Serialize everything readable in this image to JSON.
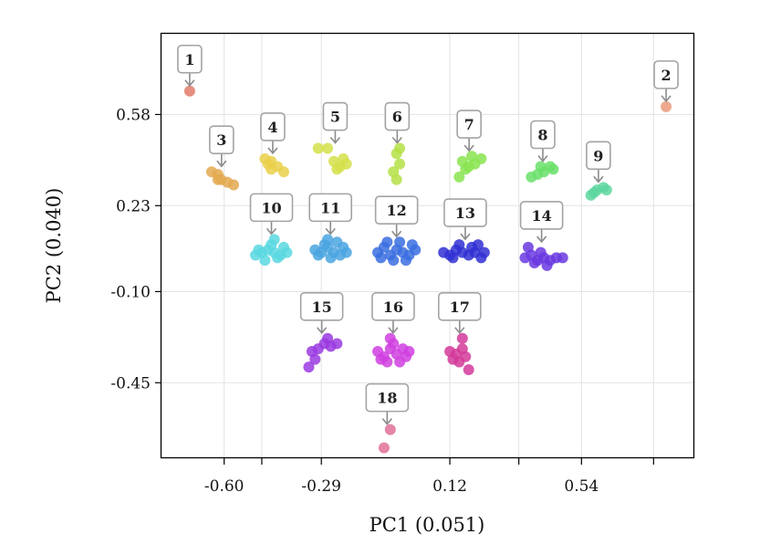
{
  "chart_data": {
    "type": "scatter",
    "title": "",
    "xlabel": "PC1 (0.051)",
    "ylabel": "PC2 (0.040)",
    "xlim": [
      -0.8,
      0.9
    ],
    "ylim": [
      -0.74,
      0.89
    ],
    "xticks": [
      -0.6,
      -0.29,
      0.12,
      0.54
    ],
    "xtick_labels": [
      "-0.60",
      "-0.29",
      "0.12",
      "0.54"
    ],
    "xticks_unlabeled": [
      -0.48,
      0.34,
      0.77
    ],
    "yticks": [
      0.58,
      0.23,
      -0.1,
      -0.45
    ],
    "ytick_labels": [
      "0.58",
      "0.23",
      "-0.10",
      "-0.45"
    ],
    "grid": true,
    "clusters": [
      {
        "label": "1",
        "color": "#e07b6a",
        "points": [
          [
            -0.71,
            0.67
          ]
        ]
      },
      {
        "label": "2",
        "color": "#ea9a7a",
        "points": [
          [
            0.81,
            0.61
          ]
        ]
      },
      {
        "label": "3",
        "color": "#e3a950",
        "points": [
          [
            -0.64,
            0.36
          ],
          [
            -0.62,
            0.35
          ],
          [
            -0.61,
            0.33
          ],
          [
            -0.59,
            0.32
          ],
          [
            -0.57,
            0.31
          ],
          [
            -0.62,
            0.33
          ]
        ]
      },
      {
        "label": "4",
        "color": "#ead04a",
        "points": [
          [
            -0.47,
            0.41
          ],
          [
            -0.45,
            0.4
          ],
          [
            -0.43,
            0.38
          ],
          [
            -0.45,
            0.37
          ],
          [
            -0.41,
            0.36
          ],
          [
            -0.46,
            0.39
          ]
        ]
      },
      {
        "label": "5",
        "color": "#d5e04a",
        "points": [
          [
            -0.3,
            0.45
          ],
          [
            -0.27,
            0.45
          ],
          [
            -0.25,
            0.4
          ],
          [
            -0.23,
            0.38
          ],
          [
            -0.24,
            0.37
          ],
          [
            -0.22,
            0.41
          ],
          [
            -0.21,
            0.39
          ]
        ]
      },
      {
        "label": "6",
        "color": "#b5e045",
        "points": [
          [
            -0.05,
            0.43
          ],
          [
            -0.04,
            0.39
          ],
          [
            -0.06,
            0.36
          ],
          [
            -0.05,
            0.33
          ],
          [
            -0.04,
            0.45
          ]
        ]
      },
      {
        "label": "7",
        "color": "#88e450",
        "points": [
          [
            0.16,
            0.4
          ],
          [
            0.17,
            0.37
          ],
          [
            0.19,
            0.42
          ],
          [
            0.2,
            0.39
          ],
          [
            0.22,
            0.41
          ],
          [
            0.15,
            0.34
          ],
          [
            0.18,
            0.38
          ]
        ]
      },
      {
        "label": "8",
        "color": "#6ae06a",
        "points": [
          [
            0.38,
            0.34
          ],
          [
            0.4,
            0.35
          ],
          [
            0.42,
            0.36
          ],
          [
            0.44,
            0.38
          ],
          [
            0.45,
            0.37
          ],
          [
            0.41,
            0.38
          ]
        ]
      },
      {
        "label": "9",
        "color": "#5ed6a0",
        "points": [
          [
            0.57,
            0.27
          ],
          [
            0.59,
            0.29
          ],
          [
            0.61,
            0.3
          ],
          [
            0.62,
            0.29
          ],
          [
            0.58,
            0.28
          ]
        ]
      },
      {
        "label": "10",
        "color": "#5ad8e0",
        "points": [
          [
            -0.5,
            0.04
          ],
          [
            -0.48,
            0.05
          ],
          [
            -0.46,
            0.06
          ],
          [
            -0.44,
            0.05
          ],
          [
            -0.42,
            0.04
          ],
          [
            -0.4,
            0.05
          ],
          [
            -0.47,
            0.02
          ],
          [
            -0.43,
            0.03
          ],
          [
            -0.45,
            0.08
          ],
          [
            -0.41,
            0.07
          ],
          [
            -0.49,
            0.06
          ],
          [
            -0.44,
            0.1
          ]
        ]
      },
      {
        "label": "11",
        "color": "#4aa4e0",
        "points": [
          [
            -0.31,
            0.06
          ],
          [
            -0.29,
            0.05
          ],
          [
            -0.27,
            0.07
          ],
          [
            -0.25,
            0.05
          ],
          [
            -0.23,
            0.04
          ],
          [
            -0.21,
            0.05
          ],
          [
            -0.28,
            0.08
          ],
          [
            -0.24,
            0.09
          ],
          [
            -0.26,
            0.03
          ],
          [
            -0.22,
            0.07
          ],
          [
            -0.3,
            0.04
          ],
          [
            -0.27,
            0.1
          ]
        ]
      },
      {
        "label": "12",
        "color": "#3a6ee0",
        "points": [
          [
            -0.11,
            0.05
          ],
          [
            -0.09,
            0.07
          ],
          [
            -0.07,
            0.04
          ],
          [
            -0.05,
            0.06
          ],
          [
            -0.03,
            0.05
          ],
          [
            -0.01,
            0.04
          ],
          [
            0.01,
            0.06
          ],
          [
            -0.08,
            0.09
          ],
          [
            -0.04,
            0.09
          ],
          [
            -0.06,
            0.02
          ],
          [
            0.0,
            0.08
          ],
          [
            -0.1,
            0.03
          ],
          [
            -0.02,
            0.02
          ]
        ]
      },
      {
        "label": "13",
        "color": "#3030d4",
        "points": [
          [
            0.1,
            0.05
          ],
          [
            0.12,
            0.04
          ],
          [
            0.14,
            0.06
          ],
          [
            0.16,
            0.05
          ],
          [
            0.18,
            0.04
          ],
          [
            0.2,
            0.05
          ],
          [
            0.22,
            0.03
          ],
          [
            0.23,
            0.05
          ],
          [
            0.15,
            0.08
          ],
          [
            0.19,
            0.07
          ],
          [
            0.13,
            0.03
          ],
          [
            0.21,
            0.08
          ]
        ]
      },
      {
        "label": "14",
        "color": "#6a38e0",
        "points": [
          [
            0.36,
            0.03
          ],
          [
            0.38,
            0.04
          ],
          [
            0.4,
            0.02
          ],
          [
            0.42,
            0.03
          ],
          [
            0.44,
            0.02
          ],
          [
            0.46,
            0.03
          ],
          [
            0.39,
            0.01
          ],
          [
            0.41,
            0.05
          ],
          [
            0.37,
            0.07
          ],
          [
            0.43,
            0.0
          ],
          [
            0.48,
            0.03
          ]
        ]
      },
      {
        "label": "15",
        "color": "#9a3ae0",
        "points": [
          [
            -0.32,
            -0.33
          ],
          [
            -0.3,
            -0.32
          ],
          [
            -0.28,
            -0.3
          ],
          [
            -0.26,
            -0.31
          ],
          [
            -0.24,
            -0.3
          ],
          [
            -0.31,
            -0.36
          ],
          [
            -0.33,
            -0.39
          ],
          [
            -0.27,
            -0.28
          ]
        ]
      },
      {
        "label": "16",
        "color": "#d040e0",
        "points": [
          [
            -0.11,
            -0.33
          ],
          [
            -0.09,
            -0.35
          ],
          [
            -0.07,
            -0.32
          ],
          [
            -0.05,
            -0.34
          ],
          [
            -0.03,
            -0.32
          ],
          [
            -0.01,
            -0.33
          ],
          [
            -0.08,
            -0.37
          ],
          [
            -0.04,
            -0.37
          ],
          [
            -0.06,
            -0.3
          ],
          [
            -0.1,
            -0.36
          ],
          [
            -0.02,
            -0.35
          ],
          [
            -0.07,
            -0.28
          ]
        ]
      },
      {
        "label": "17",
        "color": "#d43a9a",
        "points": [
          [
            0.12,
            -0.33
          ],
          [
            0.14,
            -0.34
          ],
          [
            0.16,
            -0.32
          ],
          [
            0.17,
            -0.35
          ],
          [
            0.15,
            -0.37
          ],
          [
            0.18,
            -0.4
          ],
          [
            0.16,
            -0.28
          ],
          [
            0.13,
            -0.36
          ]
        ]
      },
      {
        "label": "18",
        "color": "#e07098",
        "points": [
          [
            -0.07,
            -0.63
          ],
          [
            -0.09,
            -0.7
          ]
        ]
      }
    ]
  }
}
